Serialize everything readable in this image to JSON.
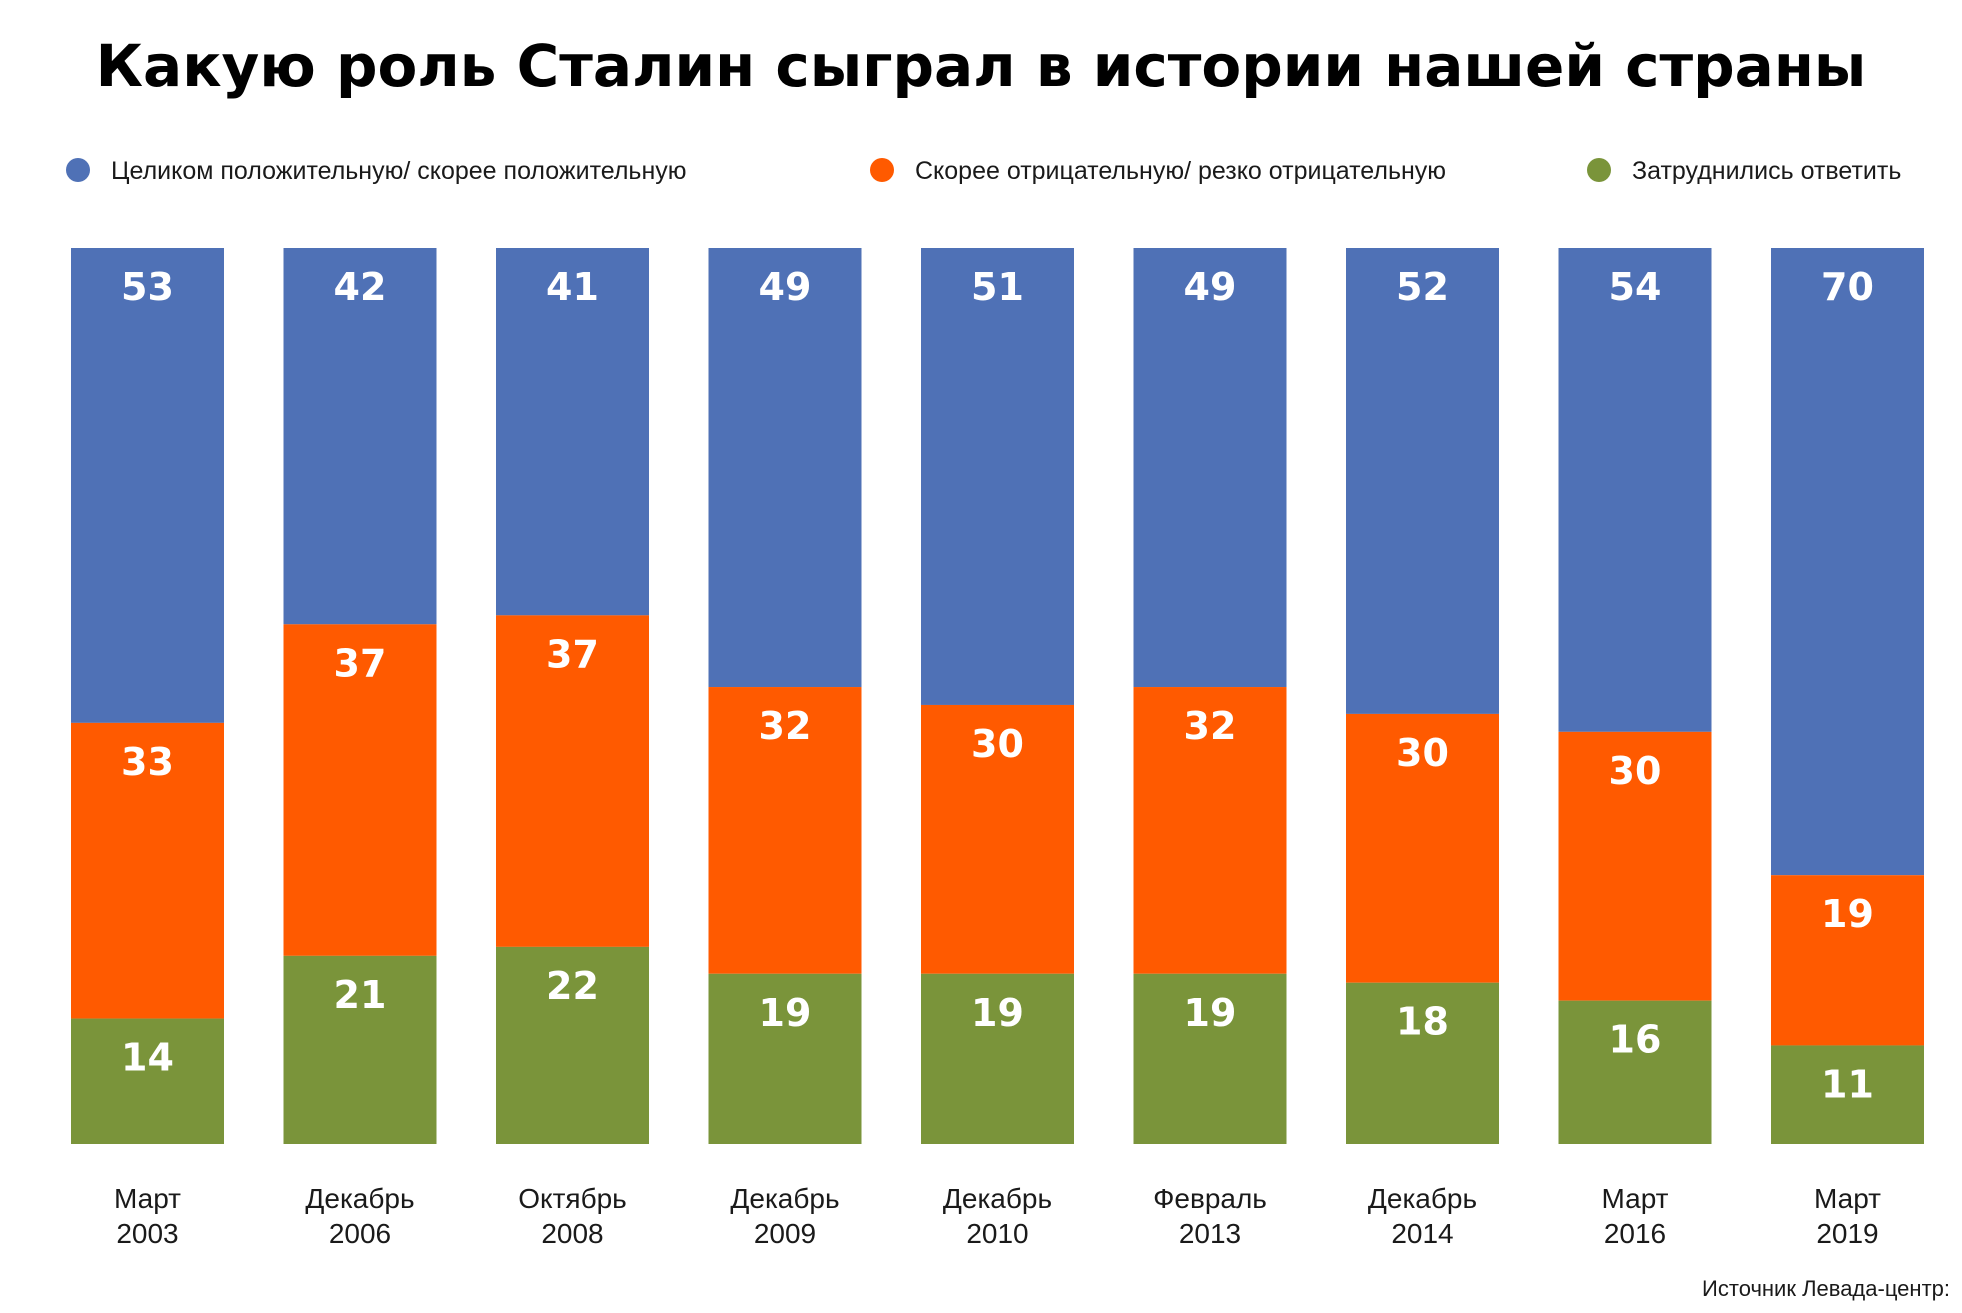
{
  "chart_data": {
    "type": "bar",
    "stacked": true,
    "title": "Какую роль Сталин сыграл в истории нашей страны",
    "categories": [
      [
        "Март",
        "2003"
      ],
      [
        "Декабрь",
        "2006"
      ],
      [
        "Октябрь",
        "2008"
      ],
      [
        "Декабрь",
        "2009"
      ],
      [
        "Декабрь",
        "2010"
      ],
      [
        "Февраль",
        "2013"
      ],
      [
        "Декабрь",
        "2014"
      ],
      [
        "Март",
        "2016"
      ],
      [
        "Март",
        "2019"
      ]
    ],
    "series": [
      {
        "name": "Целиком положительную/ скорее положительную",
        "color": "#4f71b6",
        "values": [
          53,
          42,
          41,
          49,
          51,
          49,
          52,
          54,
          70
        ]
      },
      {
        "name": "Скорее отрицательную/ резко отрицательную",
        "color": "#ff5a00",
        "values": [
          33,
          37,
          37,
          32,
          30,
          32,
          30,
          30,
          19
        ]
      },
      {
        "name": "Затруднились ответить",
        "color": "#7a943a",
        "values": [
          14,
          21,
          22,
          19,
          19,
          19,
          18,
          16,
          11
        ]
      }
    ],
    "legend_position": "top",
    "grid": false,
    "source": "Источник Левада-центр:"
  }
}
